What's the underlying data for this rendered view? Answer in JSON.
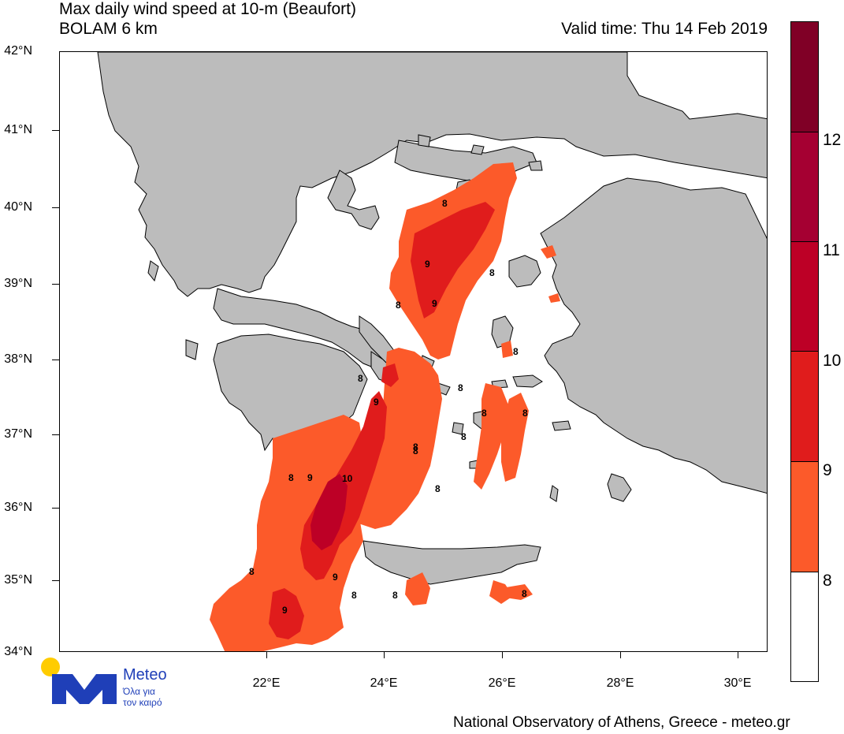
{
  "title_line1": "Max daily wind speed at 10-m (Beaufort)",
  "title_line2": "BOLAM 6 km",
  "valid_time": "Valid time: Thu 14 Feb 2019",
  "footer": "National Observatory of Athens, Greece - meteo.gr",
  "logo": {
    "name": "Meteo",
    "tagline_line1": "Όλα για",
    "tagline_line2": "τον καιρό",
    "icon": "meteo-m-logo-icon"
  },
  "map": {
    "lat_labels": [
      "34°N",
      "35°N",
      "36°N",
      "37°N",
      "38°N",
      "39°N",
      "40°N",
      "41°N",
      "42°N"
    ],
    "lon_labels": [
      "22°E",
      "24°E",
      "26°E",
      "28°E",
      "30°E"
    ],
    "wind_labels": [
      "8",
      "8",
      "9",
      "8",
      "9",
      "8",
      "8",
      "8",
      "9",
      "8",
      "8",
      "8",
      "8",
      "8",
      "8",
      "9",
      "10",
      "8",
      "8",
      "9",
      "8",
      "8",
      "8",
      "9"
    ]
  },
  "colorbar": {
    "labels": [
      "8",
      "9",
      "10",
      "11",
      "12"
    ],
    "colors": [
      "#ffffff",
      "#fc5a2a",
      "#e01c1c",
      "#bd0026",
      "#a50032",
      "#800026"
    ]
  },
  "colors": {
    "land": "#bcbcbc",
    "sea": "#ffffff",
    "bft8": "#fc5a2a",
    "bft9": "#e01c1c",
    "bft10": "#bd0026"
  }
}
